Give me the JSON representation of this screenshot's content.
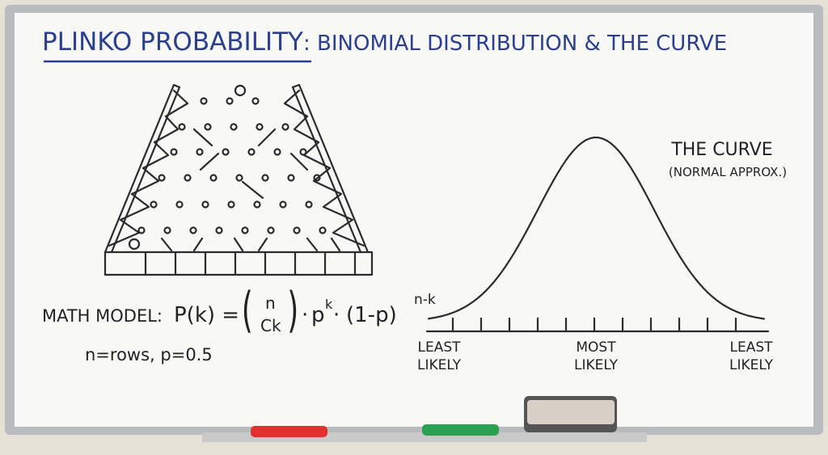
{
  "title": {
    "main": "PLINKO PROBABILITY",
    "rest": ": BINOMIAL DISTRIBUTION & THE CURVE"
  },
  "curve": {
    "title": "THE CURVE",
    "subtitle": "(NORMAL APPROX.)",
    "labels": [
      [
        "LEAST",
        "LIKELY"
      ],
      [
        "MOST",
        "LIKELY"
      ],
      [
        "LEAST",
        "LIKELY"
      ]
    ]
  },
  "math": {
    "label": "MATH MODEL:",
    "lhs": "P(k) =",
    "top": "n",
    "bottom": "Ck",
    "dot1": "·",
    "p": "p",
    "k": "k",
    "dot2": "·",
    "q": "(1-p)",
    "exp": "n-k",
    "note": "n=rows, p=0.5"
  }
}
